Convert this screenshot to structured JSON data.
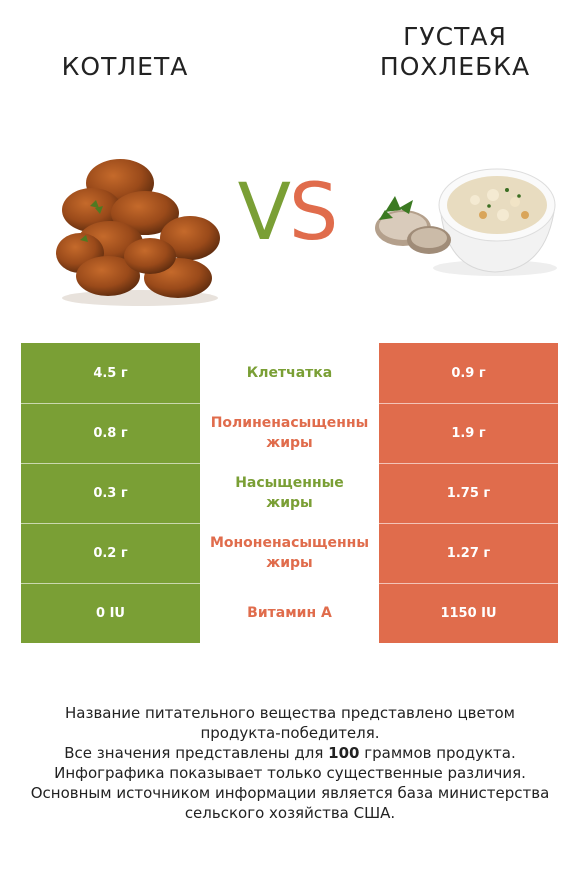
{
  "header": {
    "left_title": "КОТЛЕТА",
    "right_title_line1": "ГУСТАЯ",
    "right_title_line2": "ПОХЛЕБКА",
    "vs_v": "V",
    "vs_s": "S"
  },
  "colors": {
    "left_accent": "#7a9f35",
    "right_accent": "#e06c4c"
  },
  "images": {
    "left": "meatball-cutlets-image",
    "right": "clam-chowder-image"
  },
  "rows": [
    {
      "left": "4.5 г",
      "label_line1": "Клетчатка",
      "label_line2": "",
      "right": "0.9 г",
      "winner": "left",
      "label_color": "#7a9f35"
    },
    {
      "left": "0.8 г",
      "label_line1": "Полиненасыщенны",
      "label_line2": "жиры",
      "right": "1.9 г",
      "winner": "right",
      "label_color": "#e06c4c"
    },
    {
      "left": "0.3 г",
      "label_line1": "Насыщенные",
      "label_line2": "жиры",
      "right": "1.75 г",
      "winner": "left",
      "label_color": "#7a9f35"
    },
    {
      "left": "0.2 г",
      "label_line1": "Мононенасыщенны",
      "label_line2": "жиры",
      "right": "1.27 г",
      "winner": "right",
      "label_color": "#e06c4c"
    },
    {
      "left": "0 IU",
      "label_line1": "Витамин A",
      "label_line2": "",
      "right": "1150 IU",
      "winner": "right",
      "label_color": "#e06c4c"
    }
  ],
  "footer": {
    "line1": "Название питательного вещества представлено цветом",
    "line2": "продукта-победителя.",
    "line3_pre": "Все значения представлены для ",
    "line3_bold": "100",
    "line3_post": " граммов продукта.",
    "line4": "Инфографика показывает только существенные различия.",
    "line5": "Основным источником информации является база министерства",
    "line6": "сельского хозяйства США."
  }
}
